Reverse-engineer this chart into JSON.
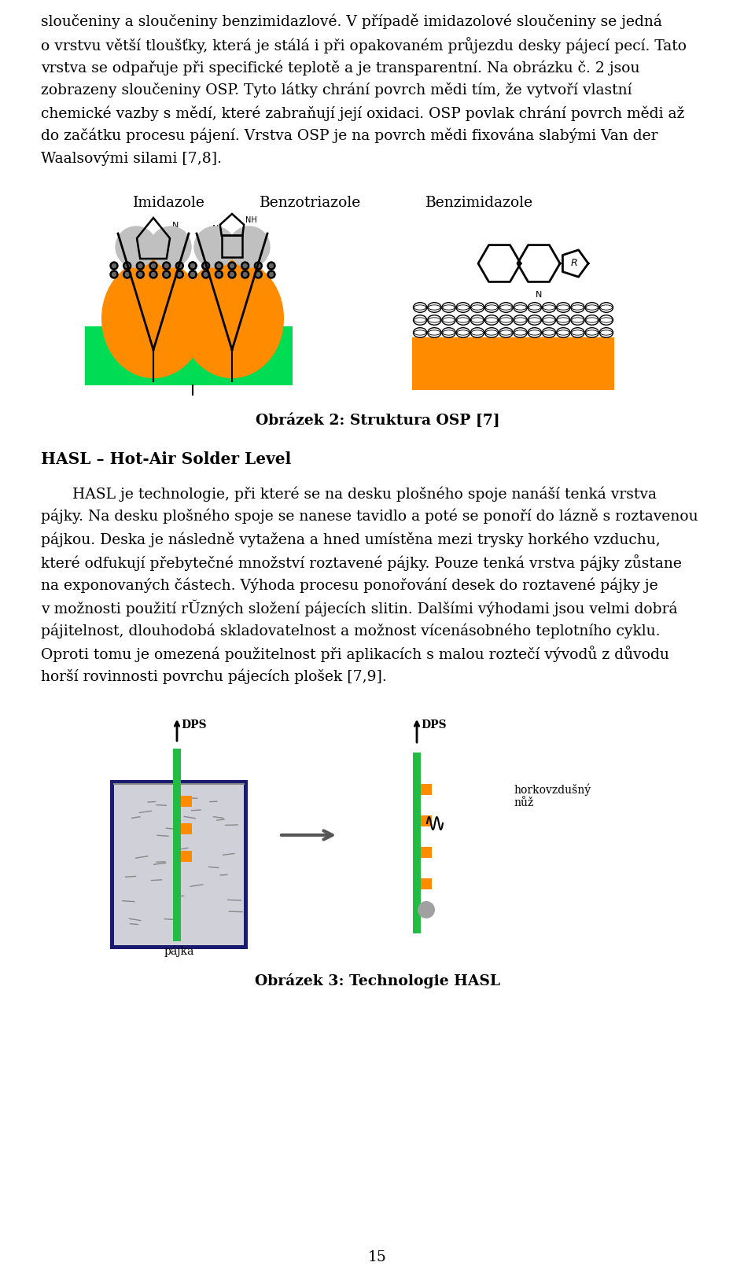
{
  "bg_color": "#ffffff",
  "text_color": "#000000",
  "paragraphs": [
    "sloučeniny a sloučeniny benzimidazlové. V případě imidazolové sloučeniny se jedná",
    "o vrstvu větší tloušťky, která je stálá i při opakovaném průjezdu desky pájecí pecí. Tato",
    "vrstva se odpařuje při specifické teplotě a je transparentní. Na obrázku č. 2 jsou",
    "zobrazeny sloučeniny OSP. Tyto látky chrání povrch mědi tím, že vytvoří vlastní",
    "chemické vazby s mědí, které zabraňují její oxidaci. OSP povlak chrání povrch mědi až",
    "do začátku procesu pájení. Vrstva OSP je na povrch mědi fixována slabými Van der",
    "Waalsovými silami [7,8]."
  ],
  "fig2_caption": "Obrázek 2: Struktura OSP [7]",
  "hasl_heading": "HASL – Hot-Air Solder Level",
  "hasl_paragraphs": [
    "HASL je technologie, při které se na desku plošného spoje nanáší tenká vrstva",
    "pájky. Na desku plošného spoje se nanese tavidlo a poté se ponoří do lázně s roztavenou",
    "pájkou. Deska je následně vytažena a hned umístěna mezi trysky horkého vzduchu,",
    "které odfukují přebytečné množství roztavené pájky. Pouze tenká vrstva pájky zůstane",
    "na exponovaných částech. Výhoda procesu ponořování desek do roztavené pájky je",
    "v možnosti použití rŬzných složení pájecích slitin. Dalšími výhodami jsou velmi dobrá",
    "pájitelnost, dlouhodobá skladovatelnost a možnost vícenásobného teplotního cyklu.",
    "Oproti tomu je omezená použitelnost při aplikacích s malou roztečí vývodů z důvodu",
    "horší rovinnosti povrchu pájecích plošek [7,9]."
  ],
  "fig3_caption": "Obrázek 3: Technologie HASL",
  "page_number": "15",
  "osp_labels": [
    "Imidazole",
    "Benzotriazole",
    "Benzimidazole"
  ],
  "orange_color": "#FF8C00",
  "green_color": "#00CC44",
  "dark_green": "#006600"
}
